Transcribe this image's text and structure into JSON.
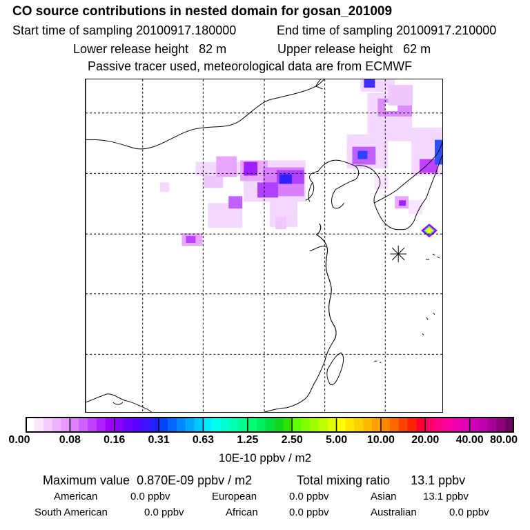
{
  "header": {
    "title": "CO  source contributions in nested domain for gosan_201009",
    "start_label": "Start time of sampling",
    "start_value": "20100917.180000",
    "end_label": "End time of sampling",
    "end_value": "20100917.210000",
    "lower_label": "Lower release height",
    "lower_value": "82 m",
    "upper_label": "Upper release height",
    "upper_value": "62 m",
    "note": "Passive tracer used, meteorological data are from ECMWF"
  },
  "colorbar": {
    "ticks": [
      "0.00",
      "0.08",
      "0.16",
      "0.31",
      "0.63",
      "1.25",
      "2.50",
      "5.00",
      "10.00",
      "20.00",
      "40.00",
      "80.00"
    ],
    "units": "10E-10 ppbv / m2",
    "colors": [
      [
        "#ffffff",
        "#fbe6ff",
        "#f5ccff",
        "#eeb3ff",
        "#e799ff"
      ],
      [
        "#dd7fff",
        "#d060ff",
        "#c040ff",
        "#b020ff",
        "#a000ff"
      ],
      [
        "#8800ff",
        "#7000ff",
        "#5a00ff",
        "#3f10ff",
        "#2020ff"
      ],
      [
        "#0044ff",
        "#0066ff",
        "#0088ff",
        "#00a8ff",
        "#00c8ff"
      ],
      [
        "#00eeff",
        "#00ffee",
        "#00ffd0",
        "#00ffb0",
        "#00ff90"
      ],
      [
        "#00ff70",
        "#00f060",
        "#00e040",
        "#10d820",
        "#30e000"
      ],
      [
        "#60ff00",
        "#80ff00",
        "#a0ff00",
        "#c0ff00",
        "#e0ff00"
      ],
      [
        "#ffff00",
        "#ffe600",
        "#ffd000",
        "#ffbb00",
        "#ffa000"
      ],
      [
        "#ff8800",
        "#ff6600",
        "#ff4400",
        "#ff2200",
        "#ff0033"
      ],
      [
        "#ff0066",
        "#ff0088",
        "#ff00a0",
        "#f000b0",
        "#e000b8"
      ],
      [
        "#d000b8",
        "#c000b0",
        "#a80098",
        "#8c007c",
        "#700060"
      ]
    ]
  },
  "summary": {
    "max_label": "Maximum value",
    "max_value": "0.870E-09 ppbv / m2",
    "total_label": "Total mixing ratio",
    "total_value": "13.1 ppbv",
    "regions": [
      {
        "name": "American",
        "value": "0.0 ppbv"
      },
      {
        "name": "European",
        "value": "0.0 ppbv"
      },
      {
        "name": "Asian",
        "value": "13.1 ppbv"
      },
      {
        "name": "South American",
        "value": "0.0 ppbv"
      },
      {
        "name": "African",
        "value": "0.0 ppbv"
      },
      {
        "name": "Australian",
        "value": "0.0 ppbv"
      }
    ]
  },
  "map": {
    "station_marker": "gosan-station-marker",
    "plume": [
      {
        "cell": 0.7,
        "level": 1
      },
      {
        "cell": 0.5,
        "level": 2
      }
    ]
  }
}
